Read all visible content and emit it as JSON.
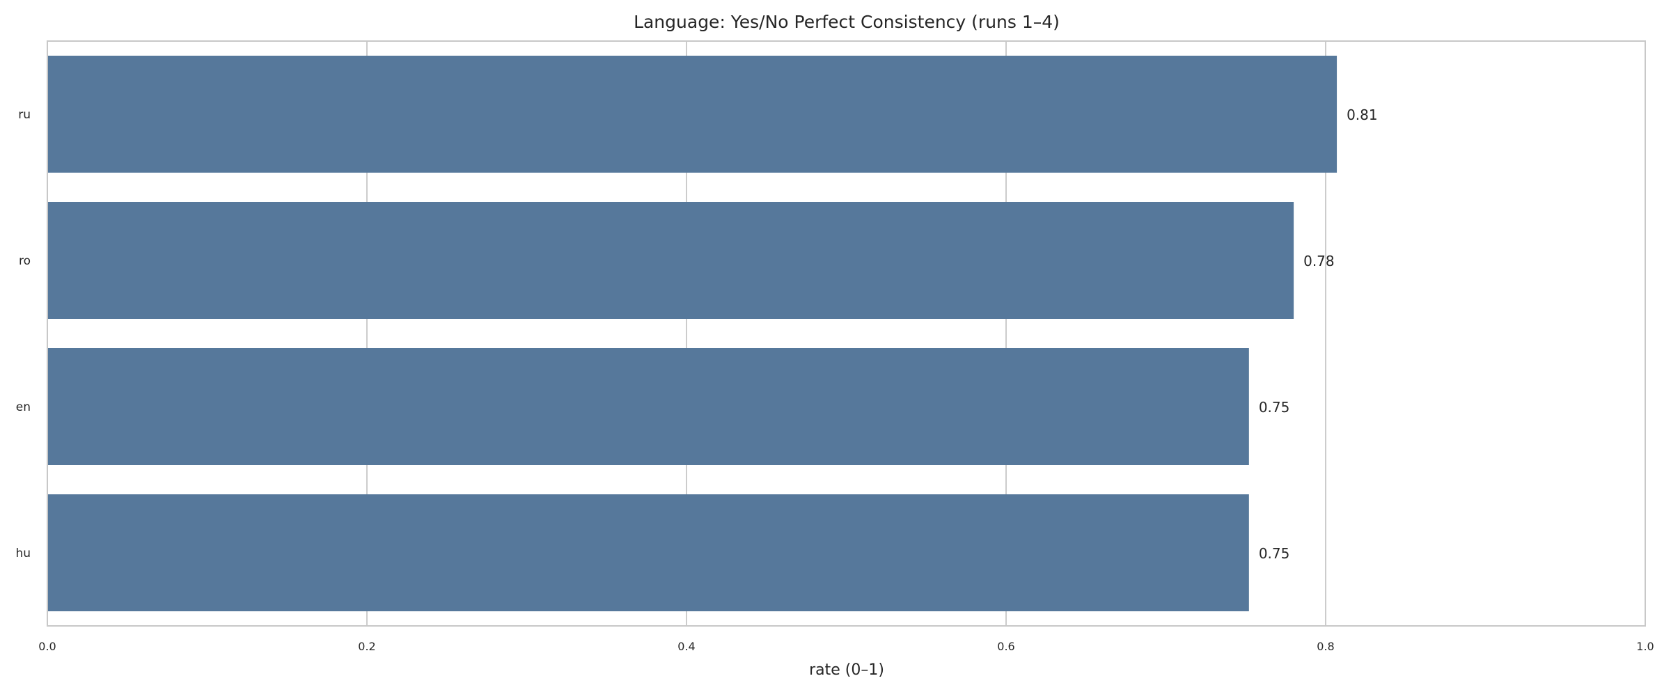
{
  "chart_data": {
    "type": "bar",
    "orientation": "horizontal",
    "title": "Language: Yes/No Perfect Consistency (runs 1–4)",
    "xlabel": "rate (0–1)",
    "ylabel": "",
    "xlim": [
      0,
      1
    ],
    "x_ticks": [
      "0.0",
      "0.2",
      "0.4",
      "0.6",
      "0.8",
      "1.0"
    ],
    "categories": [
      "ru",
      "ro",
      "en",
      "hu"
    ],
    "values": [
      0.807,
      0.78,
      0.752,
      0.752
    ],
    "value_labels": [
      "0.81",
      "0.78",
      "0.75",
      "0.75"
    ],
    "grid": true,
    "bar_color": "#56789b",
    "grid_color": "#cccccc",
    "spine_color": "#c8c8c8",
    "text_color": "#262626"
  }
}
